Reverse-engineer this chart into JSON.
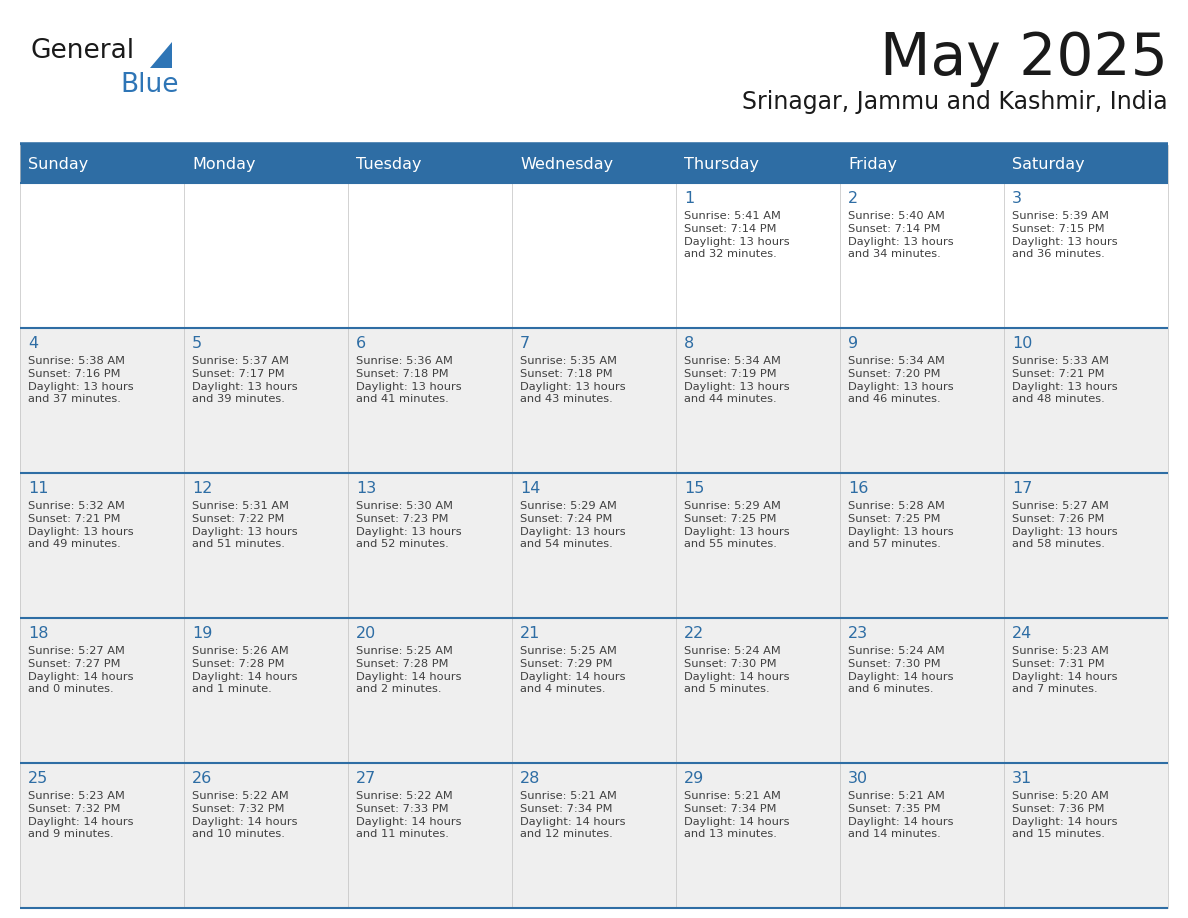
{
  "title": "May 2025",
  "subtitle": "Srinagar, Jammu and Kashmir, India",
  "header_bg": "#2E6DA4",
  "header_text_color": "#FFFFFF",
  "cell_bg_odd": "#EFEFEF",
  "cell_bg_even": "#FFFFFF",
  "day_number_color": "#2E6DA4",
  "info_text_color": "#404040",
  "border_color": "#2E6DA4",
  "days_of_week": [
    "Sunday",
    "Monday",
    "Tuesday",
    "Wednesday",
    "Thursday",
    "Friday",
    "Saturday"
  ],
  "weeks": [
    [
      {
        "day": "",
        "info": ""
      },
      {
        "day": "",
        "info": ""
      },
      {
        "day": "",
        "info": ""
      },
      {
        "day": "",
        "info": ""
      },
      {
        "day": "1",
        "info": "Sunrise: 5:41 AM\nSunset: 7:14 PM\nDaylight: 13 hours\nand 32 minutes."
      },
      {
        "day": "2",
        "info": "Sunrise: 5:40 AM\nSunset: 7:14 PM\nDaylight: 13 hours\nand 34 minutes."
      },
      {
        "day": "3",
        "info": "Sunrise: 5:39 AM\nSunset: 7:15 PM\nDaylight: 13 hours\nand 36 minutes."
      }
    ],
    [
      {
        "day": "4",
        "info": "Sunrise: 5:38 AM\nSunset: 7:16 PM\nDaylight: 13 hours\nand 37 minutes."
      },
      {
        "day": "5",
        "info": "Sunrise: 5:37 AM\nSunset: 7:17 PM\nDaylight: 13 hours\nand 39 minutes."
      },
      {
        "day": "6",
        "info": "Sunrise: 5:36 AM\nSunset: 7:18 PM\nDaylight: 13 hours\nand 41 minutes."
      },
      {
        "day": "7",
        "info": "Sunrise: 5:35 AM\nSunset: 7:18 PM\nDaylight: 13 hours\nand 43 minutes."
      },
      {
        "day": "8",
        "info": "Sunrise: 5:34 AM\nSunset: 7:19 PM\nDaylight: 13 hours\nand 44 minutes."
      },
      {
        "day": "9",
        "info": "Sunrise: 5:34 AM\nSunset: 7:20 PM\nDaylight: 13 hours\nand 46 minutes."
      },
      {
        "day": "10",
        "info": "Sunrise: 5:33 AM\nSunset: 7:21 PM\nDaylight: 13 hours\nand 48 minutes."
      }
    ],
    [
      {
        "day": "11",
        "info": "Sunrise: 5:32 AM\nSunset: 7:21 PM\nDaylight: 13 hours\nand 49 minutes."
      },
      {
        "day": "12",
        "info": "Sunrise: 5:31 AM\nSunset: 7:22 PM\nDaylight: 13 hours\nand 51 minutes."
      },
      {
        "day": "13",
        "info": "Sunrise: 5:30 AM\nSunset: 7:23 PM\nDaylight: 13 hours\nand 52 minutes."
      },
      {
        "day": "14",
        "info": "Sunrise: 5:29 AM\nSunset: 7:24 PM\nDaylight: 13 hours\nand 54 minutes."
      },
      {
        "day": "15",
        "info": "Sunrise: 5:29 AM\nSunset: 7:25 PM\nDaylight: 13 hours\nand 55 minutes."
      },
      {
        "day": "16",
        "info": "Sunrise: 5:28 AM\nSunset: 7:25 PM\nDaylight: 13 hours\nand 57 minutes."
      },
      {
        "day": "17",
        "info": "Sunrise: 5:27 AM\nSunset: 7:26 PM\nDaylight: 13 hours\nand 58 minutes."
      }
    ],
    [
      {
        "day": "18",
        "info": "Sunrise: 5:27 AM\nSunset: 7:27 PM\nDaylight: 14 hours\nand 0 minutes."
      },
      {
        "day": "19",
        "info": "Sunrise: 5:26 AM\nSunset: 7:28 PM\nDaylight: 14 hours\nand 1 minute."
      },
      {
        "day": "20",
        "info": "Sunrise: 5:25 AM\nSunset: 7:28 PM\nDaylight: 14 hours\nand 2 minutes."
      },
      {
        "day": "21",
        "info": "Sunrise: 5:25 AM\nSunset: 7:29 PM\nDaylight: 14 hours\nand 4 minutes."
      },
      {
        "day": "22",
        "info": "Sunrise: 5:24 AM\nSunset: 7:30 PM\nDaylight: 14 hours\nand 5 minutes."
      },
      {
        "day": "23",
        "info": "Sunrise: 5:24 AM\nSunset: 7:30 PM\nDaylight: 14 hours\nand 6 minutes."
      },
      {
        "day": "24",
        "info": "Sunrise: 5:23 AM\nSunset: 7:31 PM\nDaylight: 14 hours\nand 7 minutes."
      }
    ],
    [
      {
        "day": "25",
        "info": "Sunrise: 5:23 AM\nSunset: 7:32 PM\nDaylight: 14 hours\nand 9 minutes."
      },
      {
        "day": "26",
        "info": "Sunrise: 5:22 AM\nSunset: 7:32 PM\nDaylight: 14 hours\nand 10 minutes."
      },
      {
        "day": "27",
        "info": "Sunrise: 5:22 AM\nSunset: 7:33 PM\nDaylight: 14 hours\nand 11 minutes."
      },
      {
        "day": "28",
        "info": "Sunrise: 5:21 AM\nSunset: 7:34 PM\nDaylight: 14 hours\nand 12 minutes."
      },
      {
        "day": "29",
        "info": "Sunrise: 5:21 AM\nSunset: 7:34 PM\nDaylight: 14 hours\nand 13 minutes."
      },
      {
        "day": "30",
        "info": "Sunrise: 5:21 AM\nSunset: 7:35 PM\nDaylight: 14 hours\nand 14 minutes."
      },
      {
        "day": "31",
        "info": "Sunrise: 5:20 AM\nSunset: 7:36 PM\nDaylight: 14 hours\nand 15 minutes."
      }
    ]
  ],
  "logo_color_general": "#1a1a1a",
  "logo_color_blue": "#2E75B6",
  "logo_triangle_color": "#2E75B6"
}
